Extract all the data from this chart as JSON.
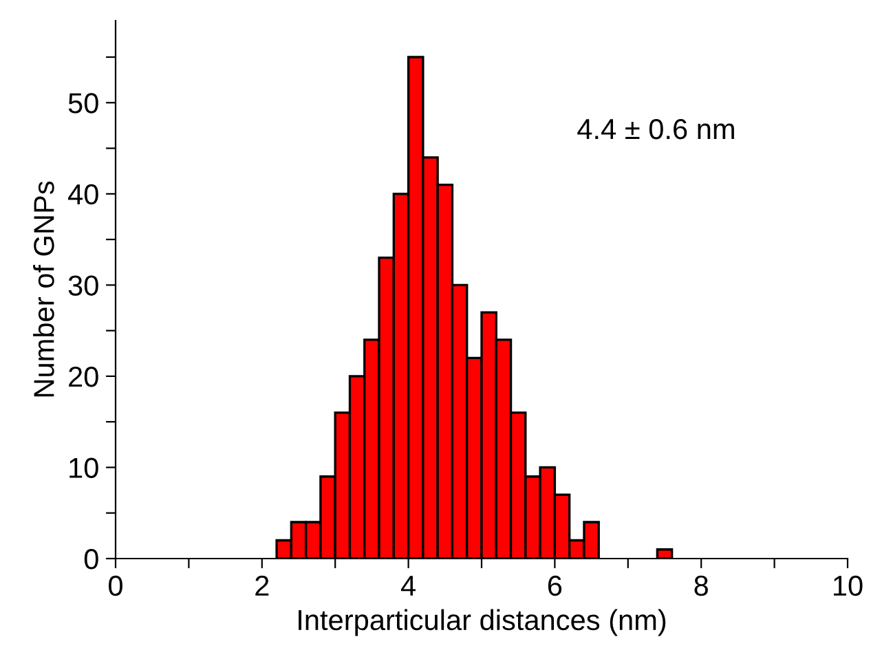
{
  "chart_data": {
    "type": "histogram",
    "xlabel": "Interparticular distances (nm)",
    "ylabel": "Number of GNPs",
    "bins": [
      2.2,
      2.4,
      2.6,
      2.8,
      3.0,
      3.2,
      3.4,
      3.6,
      3.8,
      4.0,
      4.2,
      4.4,
      4.6,
      4.8,
      5.0,
      5.2,
      5.4,
      5.6,
      5.8,
      6.0,
      6.2,
      6.4,
      6.6,
      6.8,
      7.0,
      7.2,
      7.4,
      7.6
    ],
    "values": [
      2,
      4,
      4,
      9,
      16,
      20,
      24,
      33,
      40,
      55,
      44,
      41,
      30,
      22,
      27,
      24,
      16,
      9,
      10,
      7,
      2,
      4,
      0,
      0,
      0,
      0,
      1
    ],
    "color": "#ff0000",
    "xlim": [
      0,
      10
    ],
    "ylim": [
      0,
      59
    ],
    "xticks": [
      0,
      {
        "value": 1,
        "label": null
      },
      2,
      {
        "value": 3,
        "label": null
      },
      4,
      {
        "value": 5,
        "label": null
      },
      6,
      {
        "value": 7,
        "label": null
      },
      8,
      {
        "value": 9,
        "label": null
      },
      10
    ],
    "yticks": [
      0,
      {
        "value": 5,
        "label": null
      },
      10,
      {
        "value": 15,
        "label": null
      },
      20,
      {
        "value": 25,
        "label": null
      },
      30,
      {
        "value": 35,
        "label": null
      },
      40,
      {
        "value": 45,
        "label": null
      },
      50,
      {
        "value": 55,
        "label": null
      }
    ],
    "grid": false,
    "annotations": [
      "4.4 ± 0.6 nm"
    ]
  }
}
